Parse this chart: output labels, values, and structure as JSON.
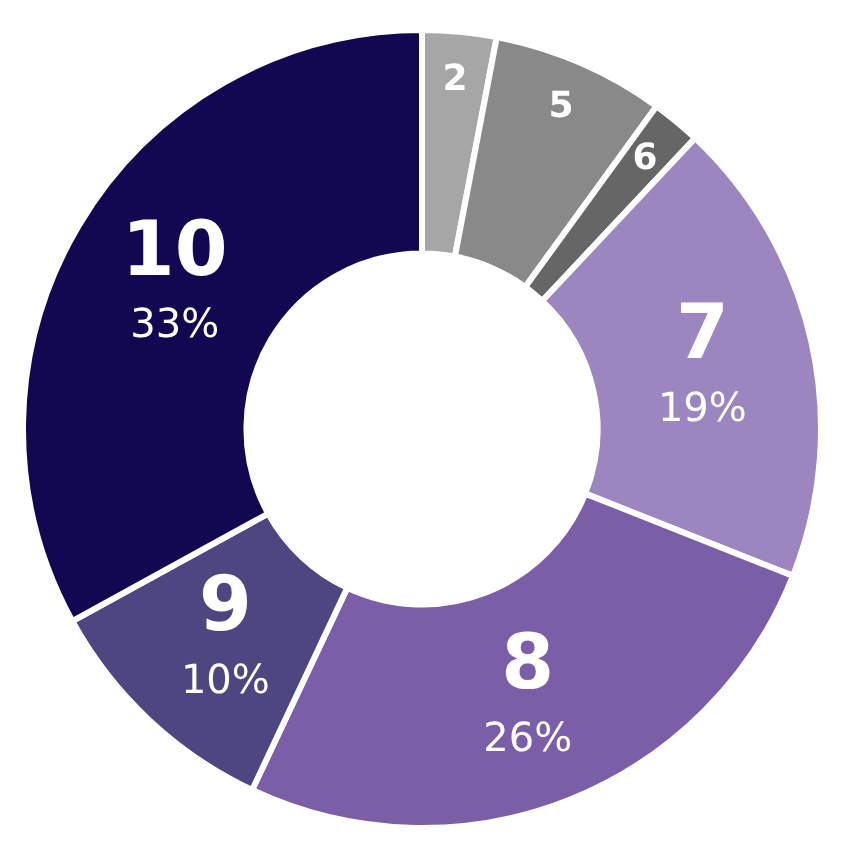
{
  "chart_data": {
    "type": "donut",
    "categories": [
      "2",
      "5",
      "6",
      "7",
      "8",
      "9",
      "10"
    ],
    "values": [
      3,
      7,
      2,
      19,
      26,
      10,
      33
    ],
    "colors": [
      "#a6a6a6",
      "#898989",
      "#666666",
      "#9b86c0",
      "#7b5ea8",
      "#4e4680",
      "#120852"
    ],
    "value_labels": [
      null,
      null,
      null,
      "19%",
      "26%",
      "10%",
      "33%"
    ],
    "legend": false
  }
}
